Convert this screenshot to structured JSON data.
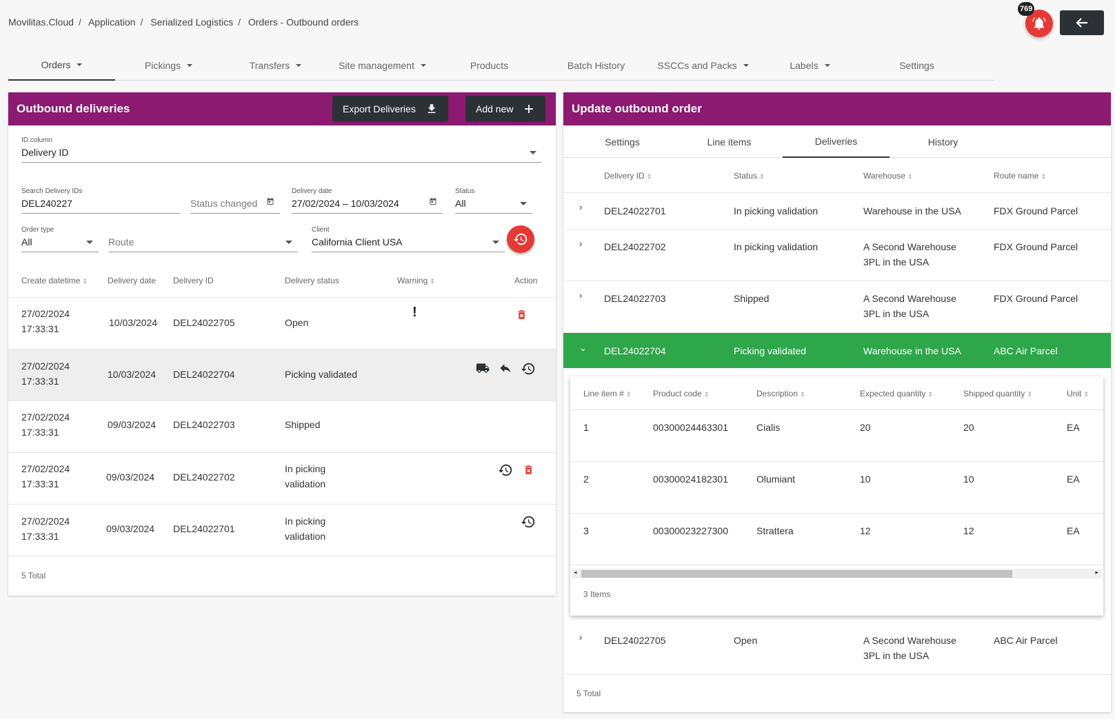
{
  "breadcrumb": [
    "Movilitas.Cloud",
    "Application",
    "Serialized Logistics",
    "Orders - Outbound orders"
  ],
  "notifications": {
    "count": "769"
  },
  "nav": {
    "tabs": [
      {
        "label": "Orders",
        "dropdown": true,
        "active": true
      },
      {
        "label": "Pickings",
        "dropdown": true
      },
      {
        "label": "Transfers",
        "dropdown": true
      },
      {
        "label": "Site management",
        "dropdown": true
      },
      {
        "label": "Products",
        "dropdown": false
      },
      {
        "label": "Batch History",
        "dropdown": false
      },
      {
        "label": "SSCCs and Packs",
        "dropdown": true
      },
      {
        "label": "Labels",
        "dropdown": true
      },
      {
        "label": "Settings",
        "dropdown": false
      }
    ]
  },
  "left": {
    "title": "Outbound deliveries",
    "export_label": "Export Deliveries",
    "add_label": "Add new",
    "filters": {
      "id_column": {
        "label": "ID column",
        "value": "Delivery ID"
      },
      "search": {
        "label": "Search Delivery IDs",
        "value": "DEL240227"
      },
      "status_changed": {
        "placeholder": "Status changed"
      },
      "delivery_date": {
        "label": "Delivery date",
        "value": "27/02/2024 – 10/03/2024"
      },
      "status": {
        "label": "Status",
        "value": "All"
      },
      "order_type": {
        "label": "Order type",
        "value": "All"
      },
      "route": {
        "placeholder": "Route"
      },
      "client": {
        "label": "Client",
        "value": "California Client USA"
      }
    },
    "headers": [
      "Create datetime",
      "Delivery date",
      "Delivery ID",
      "Delivery status",
      "Warning",
      "Action"
    ],
    "rows": [
      {
        "created_date": "27/02/2024",
        "created_time": "17:33:31",
        "delivery_date": "10/03/2024",
        "id": "DEL24022705",
        "status1": "Open",
        "status2": "",
        "warning": "!"
      },
      {
        "created_date": "27/02/2024",
        "created_time": "17:33:31",
        "delivery_date": "10/03/2024",
        "id": "DEL24022704",
        "status1": "Picking validated",
        "status2": "",
        "warning": ""
      },
      {
        "created_date": "27/02/2024",
        "created_time": "17:33:31",
        "delivery_date": "09/03/2024",
        "id": "DEL24022703",
        "status1": "Shipped",
        "status2": "",
        "warning": ""
      },
      {
        "created_date": "27/02/2024",
        "created_time": "17:33:31",
        "delivery_date": "09/03/2024",
        "id": "DEL24022702",
        "status1": "In picking",
        "status2": "validation",
        "warning": ""
      },
      {
        "created_date": "27/02/2024",
        "created_time": "17:33:31",
        "delivery_date": "09/03/2024",
        "id": "DEL24022701",
        "status1": "In picking",
        "status2": "validation",
        "warning": ""
      }
    ],
    "total": "5 Total"
  },
  "right": {
    "title": "Update outbound order",
    "tabs": [
      "Settings",
      "Line items",
      "Deliveries",
      "History"
    ],
    "headers": [
      "Delivery ID",
      "Status",
      "Warehouse",
      "Route name"
    ],
    "rows": [
      {
        "id": "DEL24022701",
        "status": "In picking validation",
        "wh1": "Warehouse in the USA",
        "wh2": "",
        "route": "FDX Ground Parcel"
      },
      {
        "id": "DEL24022702",
        "status": "In picking validation",
        "wh1": "A Second Warehouse",
        "wh2": "3PL in the USA",
        "route": "FDX Ground Parcel"
      },
      {
        "id": "DEL24022703",
        "status": "Shipped",
        "wh1": "A Second Warehouse",
        "wh2": "3PL in the USA",
        "route": "FDX Ground Parcel"
      },
      {
        "id": "DEL24022704",
        "status": "Picking validated",
        "wh1": "Warehouse in the USA",
        "wh2": "",
        "route": "ABC Air Parcel"
      },
      {
        "id": "DEL24022705",
        "status": "Open",
        "wh1": "A Second Warehouse",
        "wh2": "3PL in the USA",
        "route": "ABC Air Parcel"
      }
    ],
    "sub": {
      "headers": [
        "Line item #",
        "Product code",
        "Description",
        "Expected quantity",
        "Shipped quantity",
        "Unit"
      ],
      "rows": [
        {
          "line": "1",
          "code": "00300024463301",
          "desc": "Cialis",
          "expected": "20",
          "shipped": "20",
          "unit": "EA"
        },
        {
          "line": "2",
          "code": "00300024182301",
          "desc": "Olumiant",
          "expected": "10",
          "shipped": "10",
          "unit": "EA"
        },
        {
          "line": "3",
          "code": "00300023227300",
          "desc": "Strattera",
          "expected": "12",
          "shipped": "12",
          "unit": "EA"
        }
      ],
      "total": "3 Items"
    },
    "total": "5 Total"
  },
  "colors": {
    "header_purple": "#8b1a70",
    "accent_red": "#e53935",
    "selected_green": "#2ea64a",
    "dark_button": "#2c3136"
  }
}
